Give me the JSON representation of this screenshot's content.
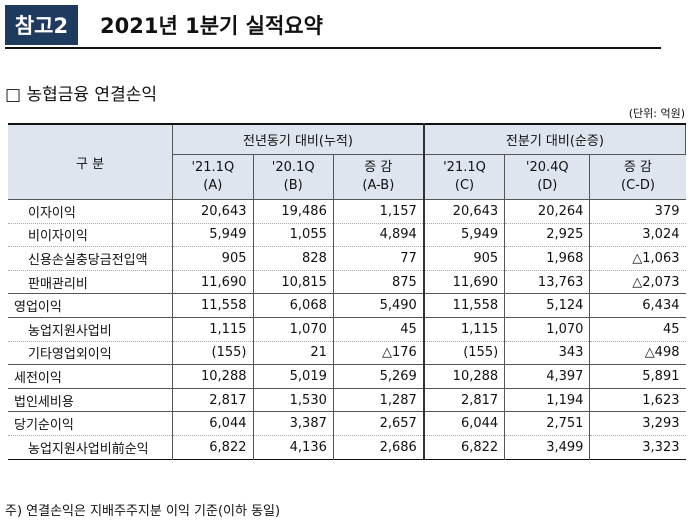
{
  "header": {
    "badge": "참고2",
    "title": "2021년 1분기 실적요약"
  },
  "section": {
    "title": "□ 농협금융 연결손익",
    "unit": "(단위: 억원)"
  },
  "table": {
    "corner": "구 분",
    "groups": [
      "전년동기 대비(누적)",
      "전분기 대비(순증)"
    ],
    "columns": [
      [
        "'21.1Q",
        "(A)"
      ],
      [
        "'20.1Q",
        "(B)"
      ],
      [
        "증 감",
        "(A-B)"
      ],
      [
        "'21.1Q",
        "(C)"
      ],
      [
        "'20.4Q",
        "(D)"
      ],
      [
        "증 감",
        "(C-D)"
      ]
    ],
    "rows": [
      [
        "이자이익",
        "20,643",
        "19,486",
        "1,157",
        "20,643",
        "20,264",
        "379"
      ],
      [
        "비이자이익",
        "5,949",
        "1,055",
        "4,894",
        "5,949",
        "2,925",
        "3,024"
      ],
      [
        "신용손실충당금전입액",
        "905",
        "828",
        "77",
        "905",
        "1,968",
        "△1,063"
      ],
      [
        "판매관리비",
        "11,690",
        "10,815",
        "875",
        "11,690",
        "13,763",
        "△2,073"
      ],
      [
        "영업이익",
        "11,558",
        "6,068",
        "5,490",
        "11,558",
        "5,124",
        "6,434"
      ],
      [
        "농업지원사업비",
        "1,115",
        "1,070",
        "45",
        "1,115",
        "1,070",
        "45"
      ],
      [
        "기타영업외이익",
        "(155)",
        "21",
        "△176",
        "(155)",
        "343",
        "△498"
      ],
      [
        "세전이익",
        "10,288",
        "5,019",
        "5,269",
        "10,288",
        "4,397",
        "5,891"
      ],
      [
        "법인세비용",
        "2,817",
        "1,530",
        "1,287",
        "2,817",
        "1,194",
        "1,623"
      ],
      [
        "당기순이익",
        "6,044",
        "3,387",
        "2,657",
        "6,044",
        "2,751",
        "3,293"
      ],
      [
        "농업지원사업비前순익",
        "6,822",
        "4,136",
        "2,686",
        "6,822",
        "3,499",
        "3,323"
      ]
    ]
  },
  "footnote": "주) 연결손익은 지배주주지분 이익 기준(이하 동일)"
}
